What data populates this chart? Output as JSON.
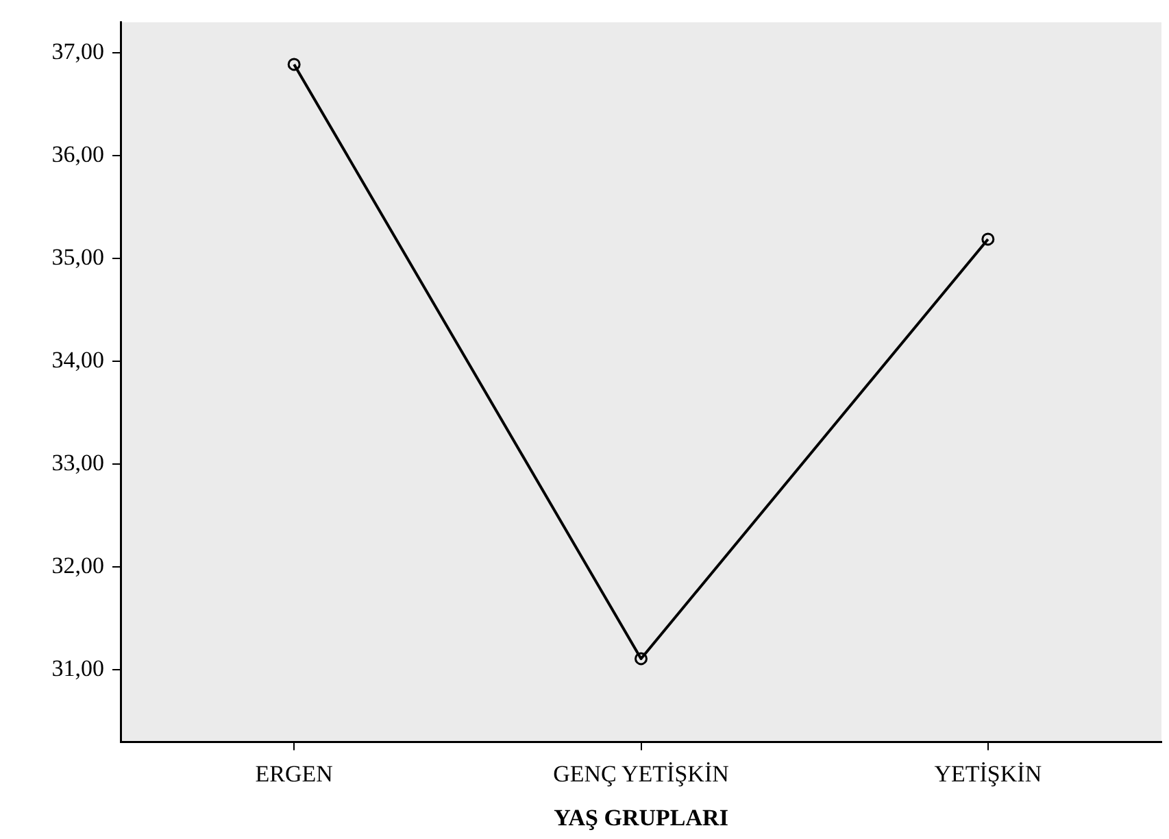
{
  "chart_data": {
    "type": "line",
    "xlabel": "YAŞ GRUPLARI",
    "categories": [
      "ERGEN",
      "GENÇ YETİŞKİN",
      "YETİŞKİN"
    ],
    "series": [
      {
        "color": "#000000",
        "values": [
          36.89,
          31.11,
          35.19
        ]
      }
    ],
    "ylim": [
      30.3,
      37.3
    ],
    "yticks": [
      {
        "value": 31,
        "label": "31,00"
      },
      {
        "value": 32,
        "label": "32,00"
      },
      {
        "value": 33,
        "label": "33,00"
      },
      {
        "value": 34,
        "label": "34,00"
      },
      {
        "value": 35,
        "label": "35,00"
      },
      {
        "value": 36,
        "label": "36,00"
      },
      {
        "value": 37,
        "label": "37,00"
      }
    ],
    "grid": false,
    "legend": false,
    "marker": "circle",
    "line_style": "solid"
  }
}
